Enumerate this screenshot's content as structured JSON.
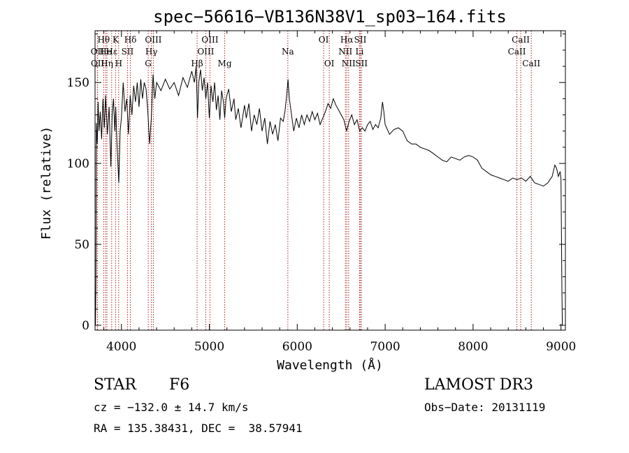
{
  "chart_data": {
    "type": "line",
    "title": "spec−56616−VB136N38V1_sp03−164.fits",
    "xlabel": "Wavelength (Å)",
    "ylabel": "Flux (relative)",
    "xlim": [
      3700,
      9050
    ],
    "ylim": [
      -3,
      182
    ],
    "xticks": [
      4000,
      5000,
      6000,
      7000,
      8000,
      9000
    ],
    "yticks": [
      0,
      50,
      100,
      150
    ],
    "series": [
      {
        "name": "flux",
        "points": [
          [
            3705,
            0
          ],
          [
            3710,
            28
          ],
          [
            3715,
            125
          ],
          [
            3725,
            112
          ],
          [
            3735,
            138
          ],
          [
            3745,
            120
          ],
          [
            3760,
            132
          ],
          [
            3775,
            115
          ],
          [
            3790,
            140
          ],
          [
            3805,
            122
          ],
          [
            3820,
            142
          ],
          [
            3840,
            118
          ],
          [
            3860,
            135
          ],
          [
            3880,
            98
          ],
          [
            3895,
            130
          ],
          [
            3910,
            140
          ],
          [
            3925,
            120
          ],
          [
            3935,
            135
          ],
          [
            3950,
            112
          ],
          [
            3970,
            88
          ],
          [
            3985,
            120
          ],
          [
            4000,
            128
          ],
          [
            4020,
            150
          ],
          [
            4040,
            132
          ],
          [
            4060,
            140
          ],
          [
            4080,
            118
          ],
          [
            4100,
            142
          ],
          [
            4120,
            130
          ],
          [
            4140,
            148
          ],
          [
            4160,
            138
          ],
          [
            4180,
            150
          ],
          [
            4200,
            135
          ],
          [
            4220,
            152
          ],
          [
            4240,
            140
          ],
          [
            4260,
            150
          ],
          [
            4280,
            146
          ],
          [
            4300,
            132
          ],
          [
            4320,
            112
          ],
          [
            4340,
            128
          ],
          [
            4360,
            155
          ],
          [
            4380,
            140
          ],
          [
            4400,
            150
          ],
          [
            4450,
            145
          ],
          [
            4500,
            152
          ],
          [
            4550,
            146
          ],
          [
            4600,
            150
          ],
          [
            4650,
            142
          ],
          [
            4700,
            153
          ],
          [
            4750,
            147
          ],
          [
            4800,
            157
          ],
          [
            4830,
            150
          ],
          [
            4850,
            160
          ],
          [
            4865,
            128
          ],
          [
            4880,
            150
          ],
          [
            4900,
            158
          ],
          [
            4920,
            145
          ],
          [
            4940,
            153
          ],
          [
            4960,
            140
          ],
          [
            4980,
            150
          ],
          [
            5000,
            128
          ],
          [
            5020,
            148
          ],
          [
            5040,
            138
          ],
          [
            5060,
            150
          ],
          [
            5080,
            133
          ],
          [
            5100,
            142
          ],
          [
            5120,
            127
          ],
          [
            5140,
            145
          ],
          [
            5160,
            138
          ],
          [
            5175,
            128
          ],
          [
            5190,
            140
          ],
          [
            5220,
            146
          ],
          [
            5250,
            132
          ],
          [
            5280,
            140
          ],
          [
            5300,
            127
          ],
          [
            5330,
            134
          ],
          [
            5360,
            122
          ],
          [
            5400,
            136
          ],
          [
            5420,
            128
          ],
          [
            5450,
            137
          ],
          [
            5480,
            120
          ],
          [
            5510,
            130
          ],
          [
            5540,
            124
          ],
          [
            5570,
            134
          ],
          [
            5600,
            120
          ],
          [
            5630,
            128
          ],
          [
            5660,
            112
          ],
          [
            5690,
            126
          ],
          [
            5720,
            118
          ],
          [
            5750,
            124
          ],
          [
            5780,
            114
          ],
          [
            5810,
            128
          ],
          [
            5840,
            126
          ],
          [
            5860,
            132
          ],
          [
            5880,
            142
          ],
          [
            5895,
            152
          ],
          [
            5910,
            140
          ],
          [
            5930,
            132
          ],
          [
            5960,
            120
          ],
          [
            5990,
            128
          ],
          [
            6020,
            122
          ],
          [
            6050,
            130
          ],
          [
            6080,
            124
          ],
          [
            6110,
            130
          ],
          [
            6140,
            126
          ],
          [
            6170,
            132
          ],
          [
            6200,
            127
          ],
          [
            6230,
            131
          ],
          [
            6260,
            124
          ],
          [
            6290,
            128
          ],
          [
            6320,
            132
          ],
          [
            6350,
            137
          ],
          [
            6380,
            134
          ],
          [
            6410,
            140
          ],
          [
            6440,
            136
          ],
          [
            6470,
            133
          ],
          [
            6500,
            130
          ],
          [
            6530,
            127
          ],
          [
            6562,
            120
          ],
          [
            6590,
            126
          ],
          [
            6620,
            130
          ],
          [
            6650,
            124
          ],
          [
            6680,
            127
          ],
          [
            6710,
            120
          ],
          [
            6740,
            122
          ],
          [
            6770,
            120
          ],
          [
            6800,
            124
          ],
          [
            6830,
            126
          ],
          [
            6860,
            121
          ],
          [
            6890,
            124
          ],
          [
            6920,
            122
          ],
          [
            6950,
            128
          ],
          [
            6970,
            138
          ],
          [
            6985,
            132
          ],
          [
            7000,
            124
          ],
          [
            7050,
            118
          ],
          [
            7100,
            121
          ],
          [
            7150,
            122
          ],
          [
            7200,
            120
          ],
          [
            7250,
            114
          ],
          [
            7300,
            112
          ],
          [
            7350,
            112
          ],
          [
            7400,
            110
          ],
          [
            7450,
            109
          ],
          [
            7500,
            108
          ],
          [
            7550,
            106
          ],
          [
            7600,
            104
          ],
          [
            7650,
            102
          ],
          [
            7700,
            101
          ],
          [
            7750,
            104
          ],
          [
            7800,
            103
          ],
          [
            7850,
            102
          ],
          [
            7900,
            104
          ],
          [
            7950,
            105
          ],
          [
            8000,
            104
          ],
          [
            8050,
            102
          ],
          [
            8100,
            97
          ],
          [
            8150,
            95
          ],
          [
            8200,
            93
          ],
          [
            8250,
            92
          ],
          [
            8300,
            91
          ],
          [
            8350,
            90
          ],
          [
            8400,
            89
          ],
          [
            8450,
            91
          ],
          [
            8500,
            90
          ],
          [
            8550,
            91
          ],
          [
            8600,
            89
          ],
          [
            8650,
            92
          ],
          [
            8700,
            88
          ],
          [
            8750,
            87
          ],
          [
            8800,
            86
          ],
          [
            8850,
            88
          ],
          [
            8900,
            92
          ],
          [
            8930,
            99
          ],
          [
            8950,
            97
          ],
          [
            8970,
            92
          ],
          [
            8990,
            95
          ],
          [
            9000,
            90
          ],
          [
            9010,
            22
          ],
          [
            9015,
            0
          ]
        ]
      }
    ],
    "lines": [
      {
        "name": "Hθ",
        "x": 3798,
        "row": 1
      },
      {
        "name": "OII",
        "x": 3727,
        "row": 2
      },
      {
        "name": "OII",
        "x": 3729,
        "row": 3
      },
      {
        "name": "He",
        "x": 3820,
        "row": 2
      },
      {
        "name": "Hη",
        "x": 3835,
        "row": 3
      },
      {
        "name": "K",
        "x": 3934,
        "row": 1
      },
      {
        "name": "Hε",
        "x": 3889,
        "row": 2
      },
      {
        "name": "H",
        "x": 3969,
        "row": 3
      },
      {
        "name": "Hδ",
        "x": 4102,
        "row": 1
      },
      {
        "name": "SII",
        "x": 4069,
        "row": 2
      },
      {
        "name": "OIII",
        "x": 4363,
        "row": 1
      },
      {
        "name": "Hγ",
        "x": 4341,
        "row": 2
      },
      {
        "name": "G",
        "x": 4305,
        "row": 3
      },
      {
        "name": "OIII",
        "x": 5007,
        "row": 1
      },
      {
        "name": "OIII",
        "x": 4959,
        "row": 2
      },
      {
        "name": "Hβ",
        "x": 4861,
        "row": 3
      },
      {
        "name": "Mg",
        "x": 5175,
        "row": 3
      },
      {
        "name": "Na",
        "x": 5893,
        "row": 2
      },
      {
        "name": "OI",
        "x": 6300,
        "row": 1
      },
      {
        "name": "OI",
        "x": 6364,
        "row": 3
      },
      {
        "name": "Hα",
        "x": 6563,
        "row": 1
      },
      {
        "name": "NII",
        "x": 6548,
        "row": 2
      },
      {
        "name": "NII",
        "x": 6584,
        "row": 3
      },
      {
        "name": "SII",
        "x": 6717,
        "row": 1
      },
      {
        "name": "Li",
        "x": 6708,
        "row": 2
      },
      {
        "name": "SII",
        "x": 6731,
        "row": 3
      },
      {
        "name": "CaII",
        "x": 8542,
        "row": 1
      },
      {
        "name": "CaII",
        "x": 8498,
        "row": 2
      },
      {
        "name": "CaII",
        "x": 8662,
        "row": 3
      }
    ]
  },
  "info": {
    "object_type": "STAR",
    "subclass": "F6",
    "survey": "LAMOST DR3",
    "redshift": "cz = −132.0 ± 14.7 km/s",
    "obs_date": "Obs−Date: 20131119",
    "coords": "RA = 135.38431, DEC =  38.57941"
  },
  "colors": {
    "line_marker": "#b22222",
    "spectrum": "#000000"
  }
}
